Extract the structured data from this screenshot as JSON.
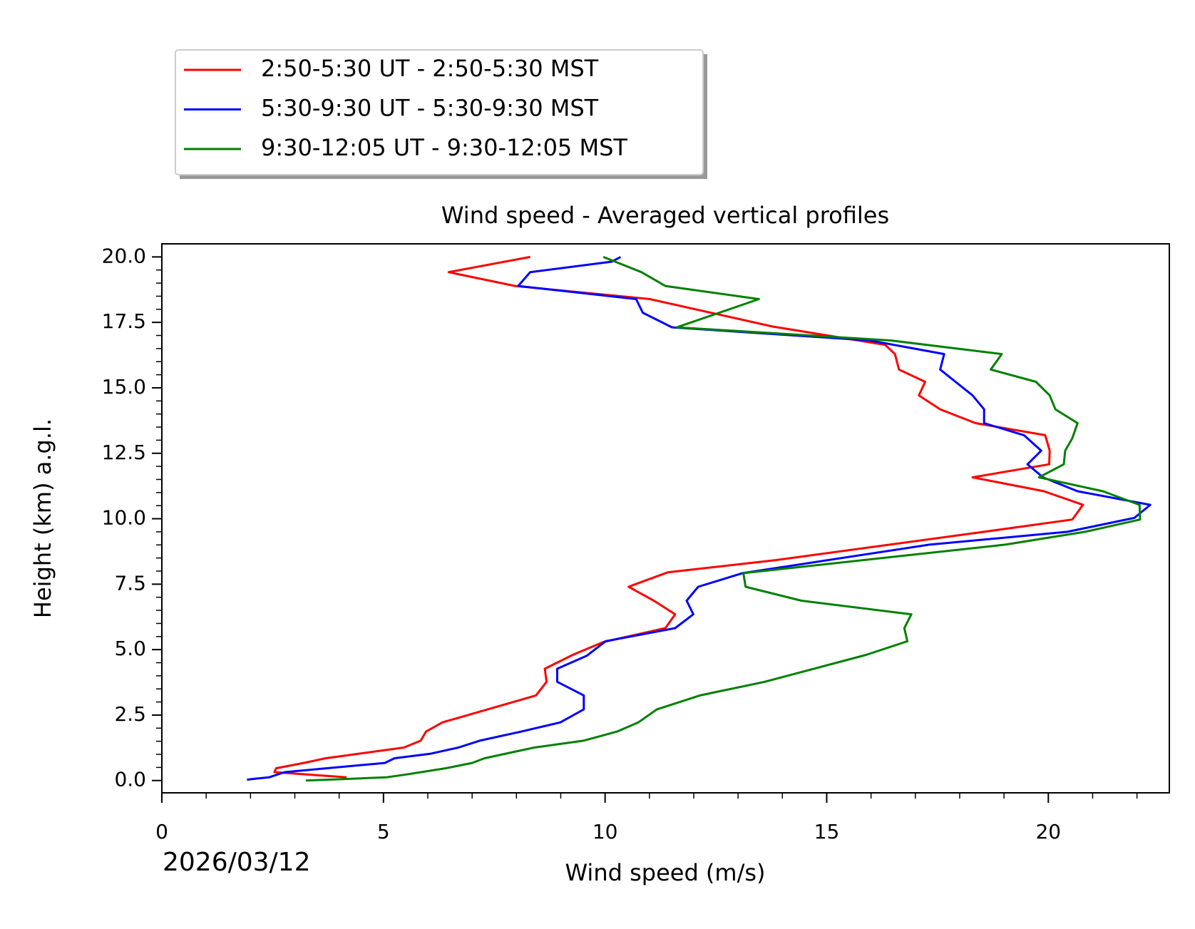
{
  "chart_data": {
    "type": "line",
    "title": "Wind speed - Averaged vertical profiles",
    "xlabel": "Wind speed (m/s)",
    "ylabel": "Height (km) a.g.l.",
    "date": "2026/03/12",
    "xlim": [
      0,
      22.73
    ],
    "ylim": [
      -0.47,
      20.5
    ],
    "xticks": [
      0,
      5,
      10,
      15,
      20
    ],
    "xminorticks": [
      1,
      2,
      3,
      4,
      6,
      7,
      8,
      9,
      11,
      12,
      13,
      14,
      16,
      17,
      18,
      19,
      21,
      22
    ],
    "yticks": [
      {
        "value": 0,
        "label": "0.0"
      },
      {
        "value": 2.5,
        "label": "2.5"
      },
      {
        "value": 5,
        "label": "5.0"
      },
      {
        "value": 7.5,
        "label": "7.5"
      },
      {
        "value": 10,
        "label": "10.0"
      },
      {
        "value": 12.5,
        "label": "12.5"
      },
      {
        "value": 15,
        "label": "15.0"
      },
      {
        "value": 17.5,
        "label": "17.5"
      },
      {
        "value": 20,
        "label": "20.0"
      }
    ],
    "yminorticks": [
      0.5,
      1,
      1.5,
      2,
      3,
      3.5,
      4,
      4.5,
      5.5,
      6,
      6.5,
      7,
      8,
      8.5,
      9,
      9.5,
      10.5,
      11,
      11.5,
      12,
      13,
      13.5,
      14,
      14.5,
      15.5,
      16,
      16.5,
      17,
      18,
      18.5,
      19,
      19.5
    ],
    "series": [
      {
        "name": "2:50-5:30 UT - 2:50-5:30 MST",
        "color": "#ff0000",
        "x": [
          8.31,
          6.47,
          7.97,
          11.01,
          13.78,
          16.32,
          16.54,
          16.63,
          17.22,
          17.08,
          17.56,
          18.36,
          19.93,
          20.03,
          20.02,
          18.29,
          19.9,
          20.78,
          20.54,
          18.55,
          13.85,
          11.41,
          10.53,
          11.1,
          11.58,
          11.36,
          9.96,
          9.27,
          8.64,
          8.68,
          8.44,
          6.33,
          5.96,
          5.84,
          5.46,
          3.7,
          3.2,
          2.58,
          2.54,
          4.17
        ],
        "y": [
          20.0,
          19.42,
          18.89,
          18.39,
          17.34,
          16.64,
          16.29,
          15.7,
          15.23,
          14.71,
          14.18,
          13.65,
          13.19,
          12.6,
          12.08,
          11.58,
          11.05,
          10.53,
          9.97,
          9.5,
          8.42,
          7.95,
          7.4,
          6.87,
          6.35,
          5.82,
          5.29,
          4.8,
          4.27,
          3.77,
          3.25,
          2.22,
          1.87,
          1.52,
          1.26,
          0.85,
          0.67,
          0.47,
          0.32,
          0.12
        ]
      },
      {
        "name": "5:30-9:30 UT - 5:30-9:30 MST",
        "color": "#0000ff",
        "x": [
          10.35,
          10.15,
          8.31,
          8.04,
          10.7,
          10.85,
          11.51,
          15.97,
          17.65,
          17.56,
          18.29,
          18.55,
          18.55,
          19.45,
          19.84,
          19.53,
          19.88,
          20.66,
          22.3,
          21.94,
          20.43,
          17.32,
          13.1,
          12.1,
          11.84,
          11.99,
          11.58,
          10.01,
          9.59,
          8.92,
          8.92,
          9.52,
          9.52,
          8.99,
          8.11,
          7.17,
          6.69,
          6.05,
          5.25,
          5.03,
          2.77,
          2.42,
          2.06,
          1.92
        ],
        "y": [
          20.0,
          19.82,
          19.42,
          18.89,
          18.39,
          17.87,
          17.31,
          16.81,
          16.29,
          15.7,
          14.71,
          14.18,
          13.65,
          13.19,
          12.6,
          12.08,
          11.58,
          11.05,
          10.53,
          10.03,
          9.5,
          9.01,
          7.92,
          7.4,
          6.87,
          6.35,
          5.82,
          5.32,
          4.77,
          4.27,
          3.77,
          3.25,
          2.72,
          2.22,
          1.87,
          1.52,
          1.26,
          1.02,
          0.85,
          0.67,
          0.32,
          0.12,
          0.06,
          0.03
        ]
      },
      {
        "name": "9:30-12:05 UT - 9:30-12:05 MST",
        "color": "#008000",
        "x": [
          9.96,
          10.82,
          11.36,
          13.47,
          11.62,
          16.44,
          18.95,
          18.7,
          19.72,
          20.03,
          20.16,
          20.66,
          20.54,
          20.38,
          20.35,
          19.79,
          21.23,
          22.06,
          22.07,
          20.83,
          19.03,
          13.12,
          13.17,
          14.43,
          16.91,
          16.75,
          16.82,
          15.89,
          13.6,
          12.14,
          11.17,
          10.75,
          10.27,
          9.51,
          8.4,
          7.28,
          7.0,
          6.41,
          5.51,
          5.06,
          3.73,
          3.25
        ],
        "y": [
          20.0,
          19.42,
          18.89,
          18.39,
          17.31,
          16.81,
          16.29,
          15.7,
          15.23,
          14.71,
          14.18,
          13.65,
          13.07,
          12.6,
          12.08,
          11.58,
          11.05,
          10.53,
          9.97,
          9.5,
          9.01,
          7.92,
          7.4,
          6.87,
          6.35,
          5.82,
          5.32,
          4.8,
          3.77,
          3.25,
          2.72,
          2.22,
          1.87,
          1.52,
          1.26,
          0.85,
          0.67,
          0.47,
          0.23,
          0.12,
          0.03,
          0.0
        ]
      }
    ]
  }
}
